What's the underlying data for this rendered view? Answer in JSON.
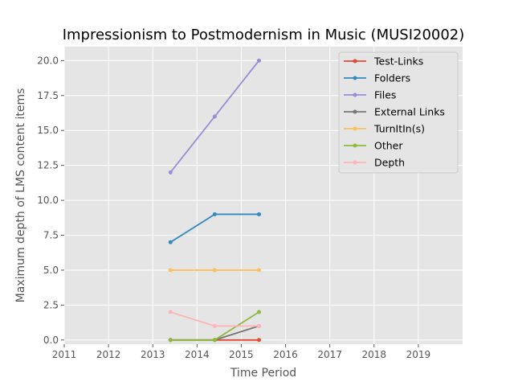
{
  "chart_data": {
    "type": "line",
    "title": "Impressionism to Postmodernism in Music (MUSI20002)",
    "xlabel": "Time Period",
    "ylabel": "Maximum depth of LMS content items",
    "xlim": [
      2011,
      2020
    ],
    "ylim": [
      -0.3,
      21
    ],
    "xticks": [
      "2011",
      "2012",
      "2013",
      "2014",
      "2015",
      "2016",
      "2017",
      "2018",
      "2019"
    ],
    "yticks": [
      "0.0",
      "2.5",
      "5.0",
      "7.5",
      "10.0",
      "12.5",
      "15.0",
      "17.5",
      "20.0"
    ],
    "grid": true,
    "legend_position": "top-right",
    "x": [
      2013.4,
      2014.4,
      2015.4
    ],
    "series": [
      {
        "name": "Test-Links",
        "color": "#E24A33",
        "values": [
          0,
          0,
          0
        ]
      },
      {
        "name": "Folders",
        "color": "#348ABD",
        "values": [
          7,
          9,
          9
        ]
      },
      {
        "name": "Files",
        "color": "#988ED5",
        "values": [
          12,
          16,
          20
        ]
      },
      {
        "name": "External Links",
        "color": "#777777",
        "values": [
          0,
          0,
          1
        ]
      },
      {
        "name": "TurnItIn(s)",
        "color": "#FBC15E",
        "values": [
          5,
          5,
          5
        ]
      },
      {
        "name": "Other",
        "color": "#8EBA42",
        "values": [
          0,
          0,
          2
        ]
      },
      {
        "name": "Depth",
        "color": "#FFB5B8",
        "values": [
          2,
          1,
          1
        ]
      }
    ]
  }
}
